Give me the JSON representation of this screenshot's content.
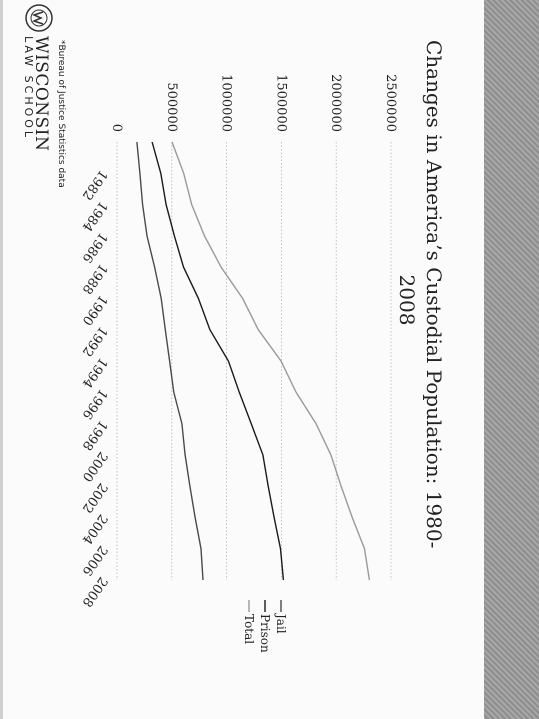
{
  "chart_data": {
    "type": "line",
    "title_line1": "Changes in America’s Custodial Population: 1980-",
    "title_line2": "2008",
    "xlabel": "",
    "ylabel": "",
    "x_ticks": [
      "1982",
      "1984",
      "1986",
      "1988",
      "1990",
      "1992",
      "1994",
      "1996",
      "1998",
      "2000",
      "2002",
      "2004",
      "2006",
      "2008"
    ],
    "y_ticks": [
      "0",
      "500000",
      "1000000",
      "1500000",
      "2000000",
      "2500000"
    ],
    "ylim": [
      0,
      2500000
    ],
    "xlim": [
      1980,
      2008
    ],
    "legend_position": "right",
    "grid": true,
    "series": [
      {
        "name": "Jail",
        "x": [
          1980,
          1982,
          1984,
          1986,
          1988,
          1990,
          1992,
          1994,
          1996,
          1998,
          2000,
          2002,
          2004,
          2006,
          2008
        ],
        "values": [
          182000,
          209000,
          234000,
          274000,
          343000,
          403000,
          441000,
          480000,
          518000,
          592000,
          621000,
          665000,
          713000,
          766000,
          785000
        ]
      },
      {
        "name": "Prison",
        "x": [
          1980,
          1982,
          1984,
          1986,
          1988,
          1990,
          1992,
          1994,
          1996,
          1998,
          2000,
          2002,
          2004,
          2006,
          2008
        ],
        "values": [
          320000,
          400000,
          448000,
          524000,
          607000,
          743000,
          848000,
          1016000,
          1116000,
          1224000,
          1331000,
          1380000,
          1433000,
          1492000,
          1518000
        ]
      },
      {
        "name": "Total",
        "x": [
          1980,
          1982,
          1984,
          1986,
          1988,
          1990,
          1992,
          1994,
          1996,
          1998,
          2000,
          2002,
          2004,
          2006,
          2008
        ],
        "values": [
          502000,
          609000,
          682000,
          798000,
          950000,
          1146000,
          1289000,
          1496000,
          1634000,
          1816000,
          1952000,
          2045000,
          2146000,
          2258000,
          2303000
        ]
      }
    ]
  },
  "footer": {
    "source_note": "*Bureau of Justice Statistics data",
    "logo_main": "WISCONSIN",
    "logo_sub": "LAW SCHOOL"
  },
  "colors": {
    "Jail": "#4a4a4a",
    "Prison": "#1a1a1a",
    "Total": "#9a9a9a",
    "band": "#9c9c9c"
  }
}
